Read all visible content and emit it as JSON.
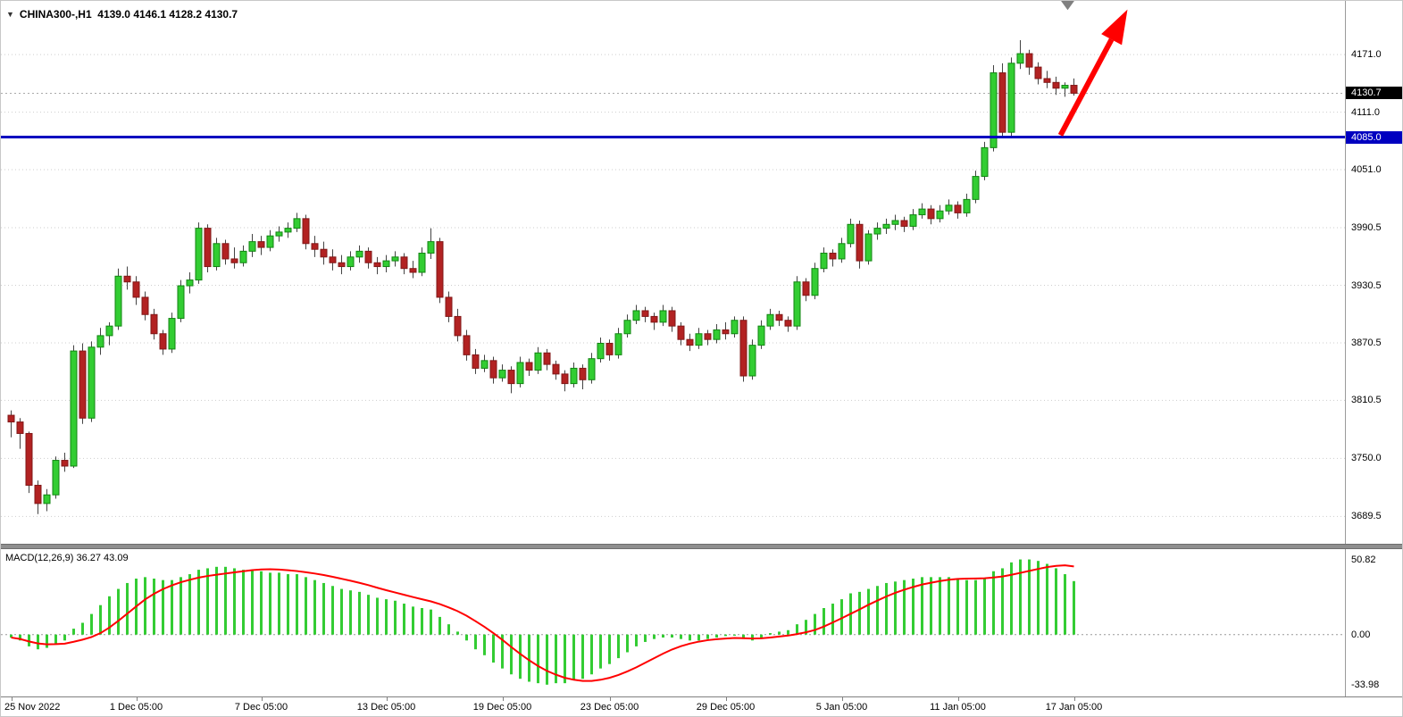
{
  "header": {
    "dropdown_icon": "▼",
    "symbol_line": "CHINA300-,H1  4139.0 4146.1 4128.2 4130.7"
  },
  "colors": {
    "bull": "#32CD32",
    "bull_border": "#128412",
    "bear": "#B22222",
    "bear_border": "#801818",
    "wick": "#444444",
    "grid": "#cdcdcd",
    "hline": "#0000C0",
    "current_price_line": "#aaaaaa",
    "price_badge_bg": "#000000",
    "hline_badge_bg": "#0000C0",
    "arrow": "#FF0000",
    "marker_gray": "#808080",
    "macd_hist": "#33CC33",
    "macd_signal": "#FF0000",
    "macd_zero": "#999999"
  },
  "chart_data": {
    "type": "candlestick+macd",
    "title": "CHINA300-,H1",
    "ohlc_header": {
      "open": "4139.0",
      "high": "4146.1",
      "low": "4128.2",
      "close": "4130.7"
    },
    "ylim": [
      3661,
      4227
    ],
    "y_ticks": [
      4171.0,
      4111.0,
      4051.0,
      3990.5,
      3930.5,
      3870.5,
      3810.5,
      3750.0,
      3689.5
    ],
    "current_price": 4130.7,
    "current_price_label": "4130.7",
    "hline": {
      "price": 4085.0,
      "label": "4085.0"
    },
    "time_ticks": [
      {
        "i": 0,
        "label": "25 Nov 2022"
      },
      {
        "i": 14,
        "label": "1 Dec 05:00"
      },
      {
        "i": 28,
        "label": "7 Dec 05:00"
      },
      {
        "i": 42,
        "label": "13 Dec 05:00"
      },
      {
        "i": 55,
        "label": "19 Dec 05:00"
      },
      {
        "i": 67,
        "label": "23 Dec 05:00"
      },
      {
        "i": 80,
        "label": "29 Dec 05:00"
      },
      {
        "i": 93,
        "label": "5 Jan 05:00"
      },
      {
        "i": 106,
        "label": "11 Jan 05:00"
      },
      {
        "i": 119,
        "label": "17 Jan 05:00"
      }
    ],
    "candles": [
      [
        3795,
        3800,
        3772,
        3788
      ],
      [
        3788,
        3792,
        3760,
        3776
      ],
      [
        3776,
        3778,
        3714,
        3722
      ],
      [
        3722,
        3727,
        3692,
        3703
      ],
      [
        3703,
        3718,
        3695,
        3712
      ],
      [
        3712,
        3752,
        3708,
        3748
      ],
      [
        3748,
        3756,
        3736,
        3742
      ],
      [
        3742,
        3868,
        3740,
        3862
      ],
      [
        3862,
        3870,
        3786,
        3792
      ],
      [
        3792,
        3872,
        3788,
        3866
      ],
      [
        3866,
        3886,
        3858,
        3878
      ],
      [
        3878,
        3892,
        3868,
        3888
      ],
      [
        3888,
        3948,
        3884,
        3940
      ],
      [
        3940,
        3950,
        3926,
        3934
      ],
      [
        3934,
        3940,
        3910,
        3918
      ],
      [
        3918,
        3924,
        3894,
        3900
      ],
      [
        3900,
        3906,
        3874,
        3880
      ],
      [
        3880,
        3884,
        3858,
        3864
      ],
      [
        3864,
        3902,
        3860,
        3896
      ],
      [
        3896,
        3936,
        3892,
        3930
      ],
      [
        3930,
        3944,
        3922,
        3936
      ],
      [
        3936,
        3996,
        3932,
        3990
      ],
      [
        3990,
        3994,
        3944,
        3950
      ],
      [
        3950,
        3980,
        3946,
        3974
      ],
      [
        3974,
        3978,
        3952,
        3958
      ],
      [
        3958,
        3970,
        3948,
        3954
      ],
      [
        3954,
        3972,
        3950,
        3966
      ],
      [
        3966,
        3984,
        3960,
        3976
      ],
      [
        3976,
        3982,
        3962,
        3970
      ],
      [
        3970,
        3988,
        3966,
        3982
      ],
      [
        3982,
        3992,
        3976,
        3986
      ],
      [
        3986,
        3996,
        3980,
        3990
      ],
      [
        3990,
        4006,
        3986,
        4000
      ],
      [
        4000,
        4004,
        3968,
        3974
      ],
      [
        3974,
        3982,
        3960,
        3968
      ],
      [
        3968,
        3976,
        3952,
        3960
      ],
      [
        3960,
        3968,
        3946,
        3954
      ],
      [
        3954,
        3962,
        3942,
        3950
      ],
      [
        3950,
        3966,
        3946,
        3960
      ],
      [
        3960,
        3972,
        3954,
        3966
      ],
      [
        3966,
        3970,
        3948,
        3954
      ],
      [
        3954,
        3960,
        3942,
        3950
      ],
      [
        3950,
        3962,
        3944,
        3956
      ],
      [
        3956,
        3966,
        3950,
        3960
      ],
      [
        3960,
        3964,
        3942,
        3948
      ],
      [
        3948,
        3956,
        3938,
        3944
      ],
      [
        3944,
        3970,
        3940,
        3964
      ],
      [
        3964,
        3990,
        3958,
        3976
      ],
      [
        3976,
        3980,
        3912,
        3918
      ],
      [
        3918,
        3924,
        3892,
        3898
      ],
      [
        3898,
        3906,
        3872,
        3878
      ],
      [
        3878,
        3884,
        3852,
        3858
      ],
      [
        3858,
        3864,
        3838,
        3844
      ],
      [
        3844,
        3858,
        3840,
        3852
      ],
      [
        3852,
        3856,
        3828,
        3834
      ],
      [
        3834,
        3848,
        3830,
        3842
      ],
      [
        3842,
        3846,
        3818,
        3828
      ],
      [
        3828,
        3856,
        3824,
        3850
      ],
      [
        3850,
        3854,
        3836,
        3842
      ],
      [
        3842,
        3866,
        3838,
        3860
      ],
      [
        3860,
        3864,
        3842,
        3848
      ],
      [
        3848,
        3852,
        3832,
        3838
      ],
      [
        3838,
        3842,
        3820,
        3828
      ],
      [
        3828,
        3850,
        3824,
        3844
      ],
      [
        3844,
        3848,
        3822,
        3832
      ],
      [
        3832,
        3860,
        3828,
        3854
      ],
      [
        3854,
        3876,
        3850,
        3870
      ],
      [
        3870,
        3874,
        3852,
        3858
      ],
      [
        3858,
        3886,
        3854,
        3880
      ],
      [
        3880,
        3900,
        3876,
        3894
      ],
      [
        3894,
        3910,
        3890,
        3904
      ],
      [
        3904,
        3908,
        3892,
        3898
      ],
      [
        3898,
        3902,
        3884,
        3892
      ],
      [
        3892,
        3910,
        3888,
        3904
      ],
      [
        3904,
        3908,
        3882,
        3888
      ],
      [
        3888,
        3892,
        3868,
        3874
      ],
      [
        3874,
        3880,
        3862,
        3868
      ],
      [
        3868,
        3886,
        3864,
        3880
      ],
      [
        3880,
        3884,
        3868,
        3874
      ],
      [
        3874,
        3890,
        3870,
        3884
      ],
      [
        3884,
        3892,
        3874,
        3880
      ],
      [
        3880,
        3898,
        3876,
        3894
      ],
      [
        3894,
        3898,
        3830,
        3836
      ],
      [
        3836,
        3874,
        3832,
        3868
      ],
      [
        3868,
        3894,
        3864,
        3888
      ],
      [
        3888,
        3906,
        3884,
        3900
      ],
      [
        3900,
        3904,
        3888,
        3894
      ],
      [
        3894,
        3898,
        3882,
        3888
      ],
      [
        3888,
        3940,
        3884,
        3934
      ],
      [
        3934,
        3938,
        3914,
        3920
      ],
      [
        3920,
        3954,
        3916,
        3948
      ],
      [
        3948,
        3970,
        3944,
        3964
      ],
      [
        3964,
        3968,
        3950,
        3958
      ],
      [
        3958,
        3980,
        3954,
        3974
      ],
      [
        3974,
        4000,
        3970,
        3994
      ],
      [
        3994,
        3998,
        3948,
        3956
      ],
      [
        3956,
        3988,
        3952,
        3984
      ],
      [
        3984,
        3996,
        3978,
        3990
      ],
      [
        3990,
        4000,
        3984,
        3994
      ],
      [
        3994,
        4004,
        3988,
        3998
      ],
      [
        3998,
        4002,
        3986,
        3992
      ],
      [
        3992,
        4010,
        3988,
        4004
      ],
      [
        4004,
        4016,
        4000,
        4010
      ],
      [
        4010,
        4014,
        3994,
        4000
      ],
      [
        4000,
        4014,
        3996,
        4008
      ],
      [
        4008,
        4020,
        4004,
        4014
      ],
      [
        4014,
        4018,
        4000,
        4006
      ],
      [
        4006,
        4026,
        4002,
        4020
      ],
      [
        4020,
        4050,
        4016,
        4044
      ],
      [
        4044,
        4080,
        4040,
        4074
      ],
      [
        4074,
        4160,
        4070,
        4152
      ],
      [
        4152,
        4162,
        4085,
        4090
      ],
      [
        4090,
        4168,
        4086,
        4162
      ],
      [
        4162,
        4186,
        4156,
        4172
      ],
      [
        4172,
        4176,
        4150,
        4158
      ],
      [
        4158,
        4163,
        4140,
        4146
      ],
      [
        4146,
        4154,
        4136,
        4142
      ],
      [
        4142,
        4148,
        4129,
        4136
      ],
      [
        4136,
        4142,
        4127,
        4139
      ],
      [
        4139,
        4146.1,
        4128.2,
        4130.7
      ]
    ],
    "macd": {
      "label": "MACD(12,26,9) 36.27 43.09",
      "params": "12,26,9",
      "main": 36.27,
      "signal": 43.09,
      "ylim": [
        -42,
        58
      ],
      "ticks": [
        {
          "v": 50.82,
          "label": "50.82"
        },
        {
          "v": 0,
          "label": "0.00"
        },
        {
          "v": -33.98,
          "label": "-33.98"
        }
      ],
      "hist": [
        -2,
        -4,
        -8,
        -10,
        -9,
        -6,
        -4,
        4,
        8,
        14,
        20,
        26,
        31,
        35,
        38,
        39,
        38,
        37,
        37,
        39,
        41,
        44,
        45,
        46,
        46,
        45,
        44,
        44,
        43,
        42,
        42,
        41,
        41,
        39,
        37,
        35,
        33,
        31,
        30,
        29,
        27,
        25,
        24,
        23,
        21,
        19,
        18,
        17,
        12,
        7,
        2,
        -4,
        -10,
        -14,
        -19,
        -23,
        -27,
        -30,
        -32,
        -33,
        -34,
        -33,
        -33,
        -31,
        -30,
        -27,
        -23,
        -20,
        -16,
        -12,
        -8,
        -5,
        -3,
        -2,
        -2,
        -3,
        -4,
        -4,
        -3,
        -2,
        -1,
        0,
        -3,
        -4,
        -2,
        1,
        2,
        3,
        7,
        10,
        14,
        18,
        21,
        24,
        28,
        29,
        31,
        33,
        35,
        36,
        37,
        38,
        39,
        39,
        39,
        39,
        38,
        37,
        37,
        38,
        43,
        45,
        49,
        51,
        51,
        50,
        48,
        45,
        41,
        36.3
      ]
    }
  },
  "annotations": {
    "arrow": {
      "from_bar": 117.5,
      "from_price": 4087,
      "to_bar": 125,
      "to_price": 4218
    },
    "gray_triangle": {
      "bar": 118.3,
      "price": 4224
    }
  }
}
